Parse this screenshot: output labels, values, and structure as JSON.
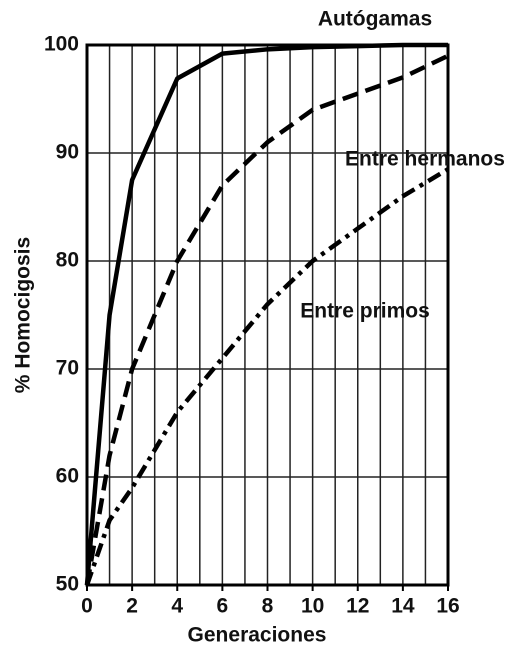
{
  "chart_data": {
    "type": "line",
    "xlabel": "Generaciones",
    "ylabel": "% Homocigosis",
    "x": [
      0,
      1,
      2,
      4,
      6,
      8,
      10,
      12,
      14,
      16
    ],
    "series": [
      {
        "name": "Autógamas",
        "color": "#000000",
        "style": "solid",
        "values": [
          50,
          75,
          87.5,
          96.9,
          99.2,
          99.6,
          99.8,
          99.9,
          100,
          100
        ]
      },
      {
        "name": "Entre hermanos",
        "color": "#000000",
        "style": "dashed",
        "values": [
          50,
          62,
          70,
          80,
          87,
          91,
          94,
          95.5,
          97,
          99
        ]
      },
      {
        "name": "Entre primos",
        "color": "#000000",
        "style": "dashdot",
        "values": [
          50,
          56,
          59,
          66,
          71,
          76,
          80,
          83,
          86,
          88.5
        ]
      }
    ],
    "xlim": [
      0,
      16
    ],
    "xticks": [
      0,
      2,
      4,
      6,
      8,
      10,
      12,
      14,
      16
    ],
    "xgrid_minor": [
      1,
      3,
      5,
      7,
      9,
      11,
      13,
      15
    ],
    "ylim": [
      50,
      100
    ],
    "yticks": [
      50,
      60,
      70,
      80,
      90,
      100
    ],
    "grid": true
  }
}
